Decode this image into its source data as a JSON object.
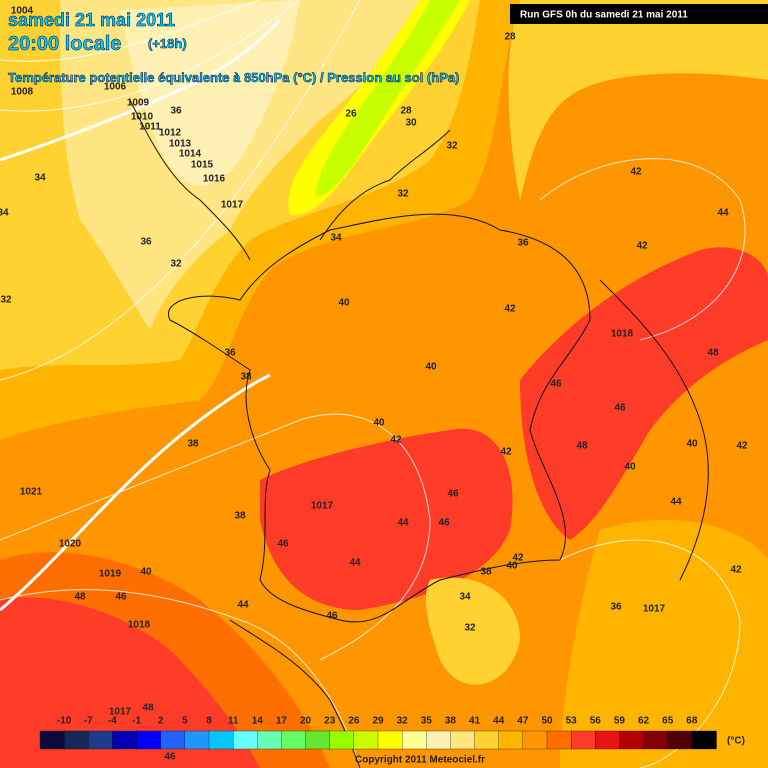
{
  "header": {
    "date": "samedi 21 mai 2011",
    "time": "20:00 locale",
    "offset": "(+18h)",
    "subtitle": "Température potentielle équivalente à 850hPa (°C) / Pression au sol (hPa)",
    "run": "Run GFS 0h du samedi 21 mai 2011"
  },
  "legend": {
    "ticks": [
      -10,
      -7,
      -4,
      -1,
      2,
      5,
      8,
      11,
      14,
      17,
      20,
      23,
      26,
      29,
      32,
      35,
      38,
      41,
      44,
      47,
      50,
      53,
      56,
      59,
      62,
      65,
      68
    ],
    "unit": "(°C)",
    "colors": [
      "#0a0a3c",
      "#14285a",
      "#1e3c8c",
      "#0000b4",
      "#0000ff",
      "#1e64ff",
      "#1e96ff",
      "#00c8ff",
      "#64ffff",
      "#64ffb4",
      "#64ff64",
      "#64e632",
      "#96ff00",
      "#c8ff00",
      "#ffff00",
      "#ffff96",
      "#fff0b4",
      "#ffe682",
      "#ffd232",
      "#ffb400",
      "#ff9600",
      "#ff6e00",
      "#ff3c28",
      "#e61414",
      "#b40000",
      "#820000",
      "#500000",
      "#000000"
    ]
  },
  "copyright": "Copyright 2011 Meteociel.fr",
  "map_labels": [
    1004,
    1008,
    1006,
    1009,
    1010,
    1011,
    1012,
    1013,
    1014,
    1015,
    1016,
    1017,
    34,
    36,
    36,
    32,
    32,
    34,
    26,
    28,
    30,
    32,
    28,
    32,
    34,
    36,
    42,
    44,
    42,
    40,
    42,
    1018,
    48,
    36,
    38,
    40,
    46,
    46,
    48,
    40,
    42,
    40,
    40,
    42,
    42,
    38,
    1021,
    46,
    44,
    1017,
    38,
    44,
    46,
    46,
    1020,
    44,
    42,
    40,
    38,
    42,
    1019,
    40,
    48,
    46,
    34,
    44,
    36,
    1017,
    46,
    1018,
    32,
    1017,
    48,
    46
  ]
}
